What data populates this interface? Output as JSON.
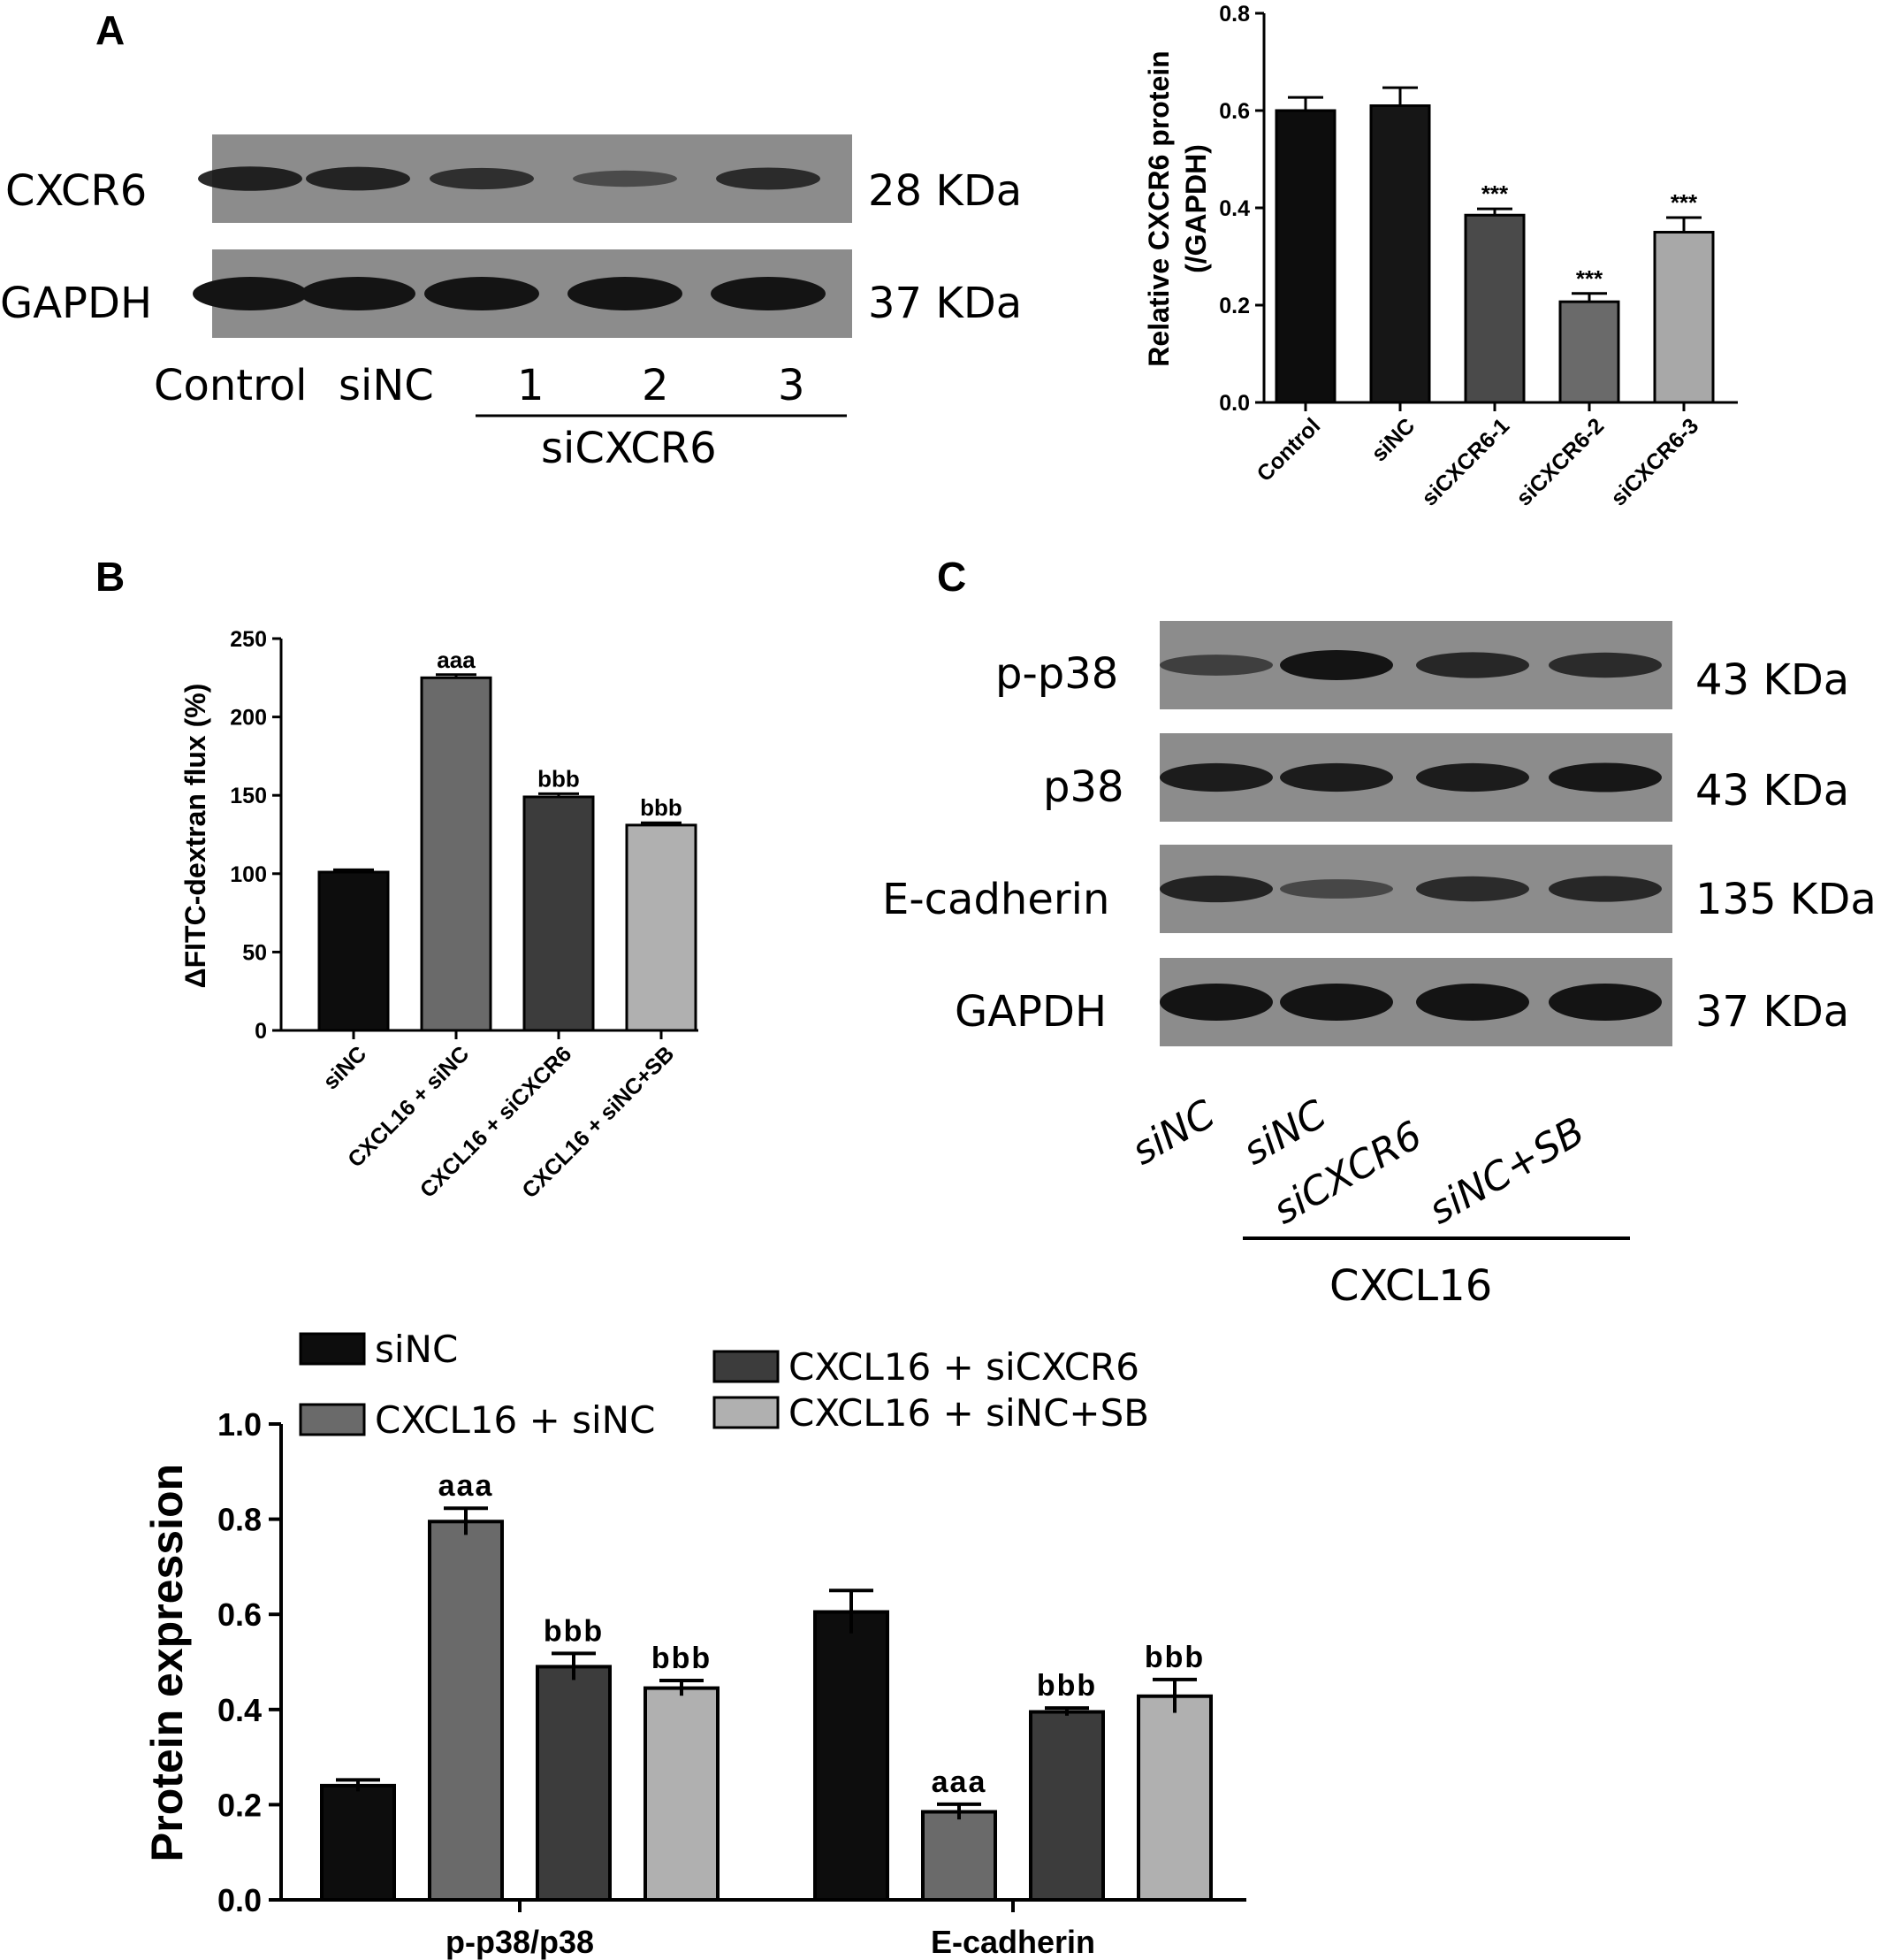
{
  "panel_labels": {
    "a": "A",
    "b": "B",
    "c": "C"
  },
  "blot_a": {
    "rows": [
      {
        "protein": "CXCR6",
        "size": "28 KDa",
        "band_intensity": [
          0.85,
          0.8,
          0.65,
          0.3,
          0.7
        ]
      },
      {
        "protein": "GAPDH",
        "size": "37 KDa",
        "band_intensity": [
          1,
          1,
          1,
          1,
          1
        ]
      }
    ],
    "lanes": [
      "Control",
      "siNC",
      "1",
      "2",
      "3"
    ],
    "group_label": "siCXCR6"
  },
  "blot_c": {
    "rows": [
      {
        "protein": "p-p38",
        "size": "43 KDa",
        "band_intensity": [
          0.45,
          1,
          0.75,
          0.7
        ]
      },
      {
        "protein": "p38",
        "size": "43 KDa",
        "band_intensity": [
          0.9,
          0.9,
          0.9,
          0.95
        ]
      },
      {
        "protein": "E-cadherin",
        "size": "135 KDa",
        "band_intensity": [
          0.8,
          0.35,
          0.7,
          0.75
        ]
      },
      {
        "protein": "GAPDH",
        "size": "37 KDa",
        "band_intensity": [
          1,
          1,
          1,
          1
        ]
      }
    ],
    "lanes": [
      "siNC",
      "siNC",
      "siCXCR6",
      "siNC+SB"
    ],
    "group_label": "CXCL16"
  },
  "chart_data": [
    {
      "type": "bar",
      "id": "a",
      "categories": [
        "Control",
        "siNC",
        "siCXCR6-1",
        "siCXCR6-2",
        "siCXCR6-3"
      ],
      "values": [
        0.6,
        0.61,
        0.385,
        0.207,
        0.35
      ],
      "errors": [
        0.027,
        0.037,
        0.013,
        0.017,
        0.03
      ],
      "colors": [
        "#0d0d0d",
        "#161616",
        "#4a4a4a",
        "#6a6a6a",
        "#a8a8a8"
      ],
      "annotations": [
        "",
        "",
        "***",
        "***",
        "***"
      ],
      "ylabel": "Relative CXCR6 protein\n(/GAPDH)",
      "ylim": [
        0,
        0.8
      ],
      "yticks": [
        "0.0",
        "0.2",
        "0.4",
        "0.6",
        "0.8"
      ]
    },
    {
      "type": "bar",
      "id": "b",
      "categories": [
        "siNC",
        "CXCL16 + siNC",
        "CXCL16 + siCXCR6",
        "CXCL16 + siNC+SB"
      ],
      "values": [
        101,
        225,
        149,
        131
      ],
      "errors": [
        1.5,
        2,
        2,
        1.5
      ],
      "colors": [
        "#0d0d0d",
        "#6a6a6a",
        "#3c3c3c",
        "#b0b0b0"
      ],
      "annotations": [
        "",
        "aaa",
        "bbb",
        "bbb"
      ],
      "ylabel": "ΔFITC-dextran flux (%)",
      "ylim": [
        0,
        250
      ],
      "yticks": [
        "0",
        "50",
        "100",
        "150",
        "200",
        "250"
      ]
    },
    {
      "type": "bar",
      "id": "c",
      "categories": [
        "p-p38/p38",
        "E-cadherin"
      ],
      "series": [
        {
          "name": "siNC",
          "values": [
            0.24,
            0.605
          ],
          "errors": [
            0.012,
            0.045
          ],
          "annotations": [
            "",
            ""
          ],
          "color": "#0d0d0d"
        },
        {
          "name": "CXCL16 + siNC",
          "values": [
            0.795,
            0.185
          ],
          "errors": [
            0.028,
            0.016
          ],
          "annotations": [
            "aaa",
            "aaa"
          ],
          "color": "#6a6a6a"
        },
        {
          "name": "CXCL16 + siCXCR6",
          "values": [
            0.49,
            0.395
          ],
          "errors": [
            0.028,
            0.008
          ],
          "annotations": [
            "bbb",
            "bbb"
          ],
          "color": "#3c3c3c"
        },
        {
          "name": "CXCL16 + siNC+SB",
          "values": [
            0.445,
            0.428
          ],
          "errors": [
            0.016,
            0.035
          ],
          "annotations": [
            "bbb",
            "bbb"
          ],
          "color": "#b0b0b0"
        }
      ],
      "ylabel": "Protein expression",
      "ylim": [
        0,
        1.0
      ],
      "yticks": [
        "0.0",
        "0.2",
        "0.4",
        "0.6",
        "0.8",
        "1.0"
      ]
    }
  ]
}
